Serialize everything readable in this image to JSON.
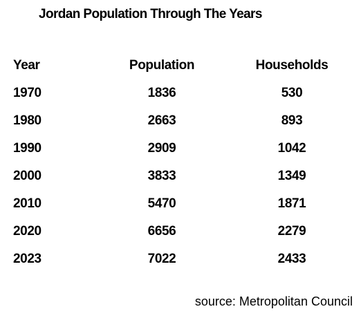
{
  "chart_data": {
    "type": "table",
    "title": "Jordan Population Through The Years",
    "columns": [
      "Year",
      "Population",
      "Households"
    ],
    "rows": [
      [
        "1970",
        "1836",
        "530"
      ],
      [
        "1980",
        "2663",
        "893"
      ],
      [
        "1990",
        "2909",
        "1042"
      ],
      [
        "2000",
        "3833",
        "1349"
      ],
      [
        "2010",
        "5470",
        "1871"
      ],
      [
        "2020",
        "6656",
        "2279"
      ],
      [
        "2023",
        "7022",
        "2433"
      ]
    ],
    "source": "source: Metropolitan Council"
  }
}
